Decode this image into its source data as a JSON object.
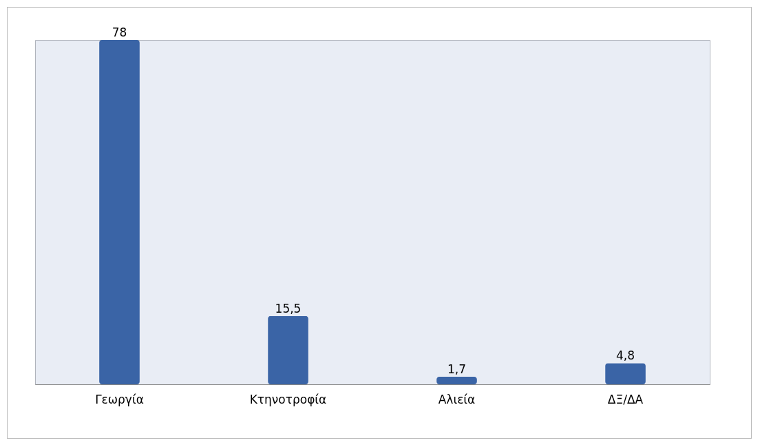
{
  "chart_data": {
    "type": "bar",
    "categories": [
      "Γεωργία",
      "Κτηνοτροφία",
      "Αλιεία",
      "ΔΞ/ΔΑ"
    ],
    "values": [
      78,
      15.5,
      1.7,
      4.8
    ],
    "value_labels": [
      "78",
      "15,5",
      "1,7",
      "4,8"
    ],
    "color": "#3a64a6",
    "tick_labels": "x"
  }
}
